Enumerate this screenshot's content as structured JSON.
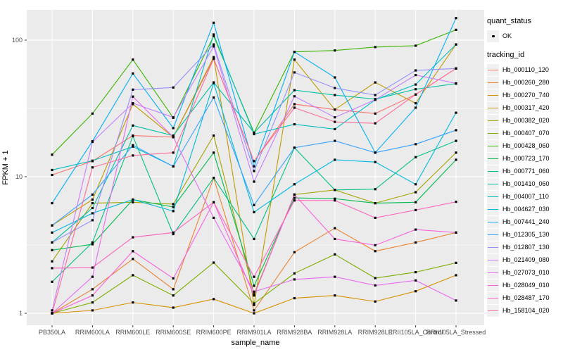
{
  "chart_data": {
    "type": "line",
    "title": "",
    "xlabel": "sample_name",
    "ylabel": "FPKM + 1",
    "yscale": "log10",
    "yticks": [
      1,
      10,
      100
    ],
    "ylim": [
      0.82,
      170
    ],
    "grid": true,
    "legend_position": "right",
    "legend": {
      "quant_status_title": "quant_status",
      "quant_status_items": [
        {
          "label": "OK",
          "symbol": "point"
        }
      ],
      "tracking_title": "tracking_id"
    },
    "style": {
      "panel_bg": "#EBEBEB",
      "grid_color": "#FFFFFF",
      "tick_label_color": "#4D4D4D",
      "point_color": "#000000",
      "key_bg": "#F0F0F0"
    },
    "categories": [
      "PB350LA",
      "RRIM600LA",
      "RRIM600LE",
      "RRIM600SE",
      "RRIM600PE",
      "RRIM901LA",
      "RRIM928BA",
      "RRIM928LA",
      "RRIM928LE",
      "RRII105LA_Control",
      "RRII105LA_Stressed"
    ],
    "series": [
      {
        "name": "Hb_000110_120",
        "color": "#F8766D",
        "values": [
          10.3,
          13,
          20,
          19.5,
          73,
          13,
          34,
          31,
          29,
          40,
          62
        ]
      },
      {
        "name": "Hb_000260_280",
        "color": "#EA8331",
        "values": [
          1.0,
          1.5,
          2.5,
          1.5,
          9.8,
          1.05,
          2.8,
          4.2,
          2.85,
          3.3,
          3.9
        ]
      },
      {
        "name": "Hb_000270_740",
        "color": "#D89000",
        "values": [
          1.0,
          1.05,
          1.2,
          1.1,
          1.27,
          1.0,
          1.29,
          1.35,
          1.22,
          1.45,
          1.9
        ]
      },
      {
        "name": "Hb_000317_420",
        "color": "#C09B00",
        "values": [
          4.4,
          6.8,
          34,
          19.5,
          75,
          1.15,
          72,
          31,
          49,
          34.5,
          93
        ]
      },
      {
        "name": "Hb_000382_020",
        "color": "#A3A500",
        "values": [
          2.4,
          6.4,
          6.5,
          6.3,
          20,
          1.38,
          7.4,
          8.0,
          6.4,
          7.7,
          15
        ]
      },
      {
        "name": "Hb_000407_070",
        "color": "#7CAE00",
        "values": [
          1.0,
          1.2,
          1.9,
          1.35,
          2.35,
          1.18,
          1.96,
          2.7,
          1.81,
          2.0,
          2.34
        ]
      },
      {
        "name": "Hb_000428_060",
        "color": "#39B600",
        "values": [
          14.5,
          29,
          72,
          27,
          107,
          21,
          82,
          84,
          89,
          91,
          119
        ]
      },
      {
        "name": "Hb_000723_170",
        "color": "#00BB4E",
        "values": [
          2.9,
          3.2,
          6.8,
          6.0,
          15,
          1.59,
          7.0,
          6.9,
          6.4,
          6.5,
          13.3
        ]
      },
      {
        "name": "Hb_000771_060",
        "color": "#00C087",
        "values": [
          1.7,
          3.3,
          19.8,
          3.8,
          9.8,
          3.5,
          16.3,
          8.0,
          8.1,
          13.9,
          18.3
        ]
      },
      {
        "name": "Hb_001410_060",
        "color": "#00C1A3",
        "values": [
          3.3,
          5.9,
          23.7,
          20,
          49,
          21,
          43,
          39.6,
          37,
          43.7,
          48
        ]
      },
      {
        "name": "Hb_004007_110",
        "color": "#00BFC4",
        "values": [
          11.2,
          13.1,
          16.6,
          11.9,
          110,
          20.5,
          24.2,
          22.3,
          36.6,
          47.3,
          93
        ]
      },
      {
        "name": "Hb_004627_030",
        "color": "#00BAE0",
        "values": [
          3.9,
          5.4,
          6.8,
          5.6,
          48.5,
          5.5,
          8.8,
          13.3,
          12.8,
          8.8,
          29.4
        ]
      },
      {
        "name": "Hb_007441_240",
        "color": "#00B0F6",
        "values": [
          6.4,
          18.2,
          57,
          22.7,
          134,
          11.9,
          82,
          53.3,
          15,
          32,
          145
        ]
      },
      {
        "name": "Hb_012305_130",
        "color": "#35A2FF",
        "values": [
          4.4,
          7.4,
          17,
          11.9,
          38,
          6.2,
          16.3,
          18.3,
          15,
          17.3,
          21.9
        ]
      },
      {
        "name": "Hb_012807_130",
        "color": "#9590FF",
        "values": [
          3.3,
          4.8,
          43.4,
          45,
          93,
          11,
          58,
          44.6,
          39.6,
          60,
          62
        ]
      },
      {
        "name": "Hb_021409_080",
        "color": "#C77CFF",
        "values": [
          1.05,
          18,
          34.5,
          27.2,
          90,
          9.2,
          38.8,
          27.2,
          36.6,
          55.5,
          48.3
        ]
      },
      {
        "name": "Hb_027073_010",
        "color": "#E76BF3",
        "values": [
          1.0,
          1.85,
          38.6,
          19.5,
          5.0,
          1.44,
          1.77,
          1.85,
          1.6,
          1.74,
          1.24
        ]
      },
      {
        "name": "Hb_028049_010",
        "color": "#FA62DB",
        "values": [
          1.0,
          1.35,
          2.85,
          1.8,
          6.5,
          1.35,
          7.4,
          3.5,
          3.15,
          4.1,
          3.9
        ]
      },
      {
        "name": "Hb_028487_170",
        "color": "#FF62BC",
        "values": [
          2.14,
          2.16,
          3.6,
          3.9,
          6.5,
          1.85,
          6.7,
          6.7,
          5.0,
          5.7,
          6.55
        ]
      },
      {
        "name": "Hb_158104_020",
        "color": "#FF6A98",
        "values": [
          1.0,
          11.7,
          14.3,
          15,
          73,
          13,
          32,
          25.2,
          24.6,
          40,
          62
        ]
      }
    ]
  }
}
